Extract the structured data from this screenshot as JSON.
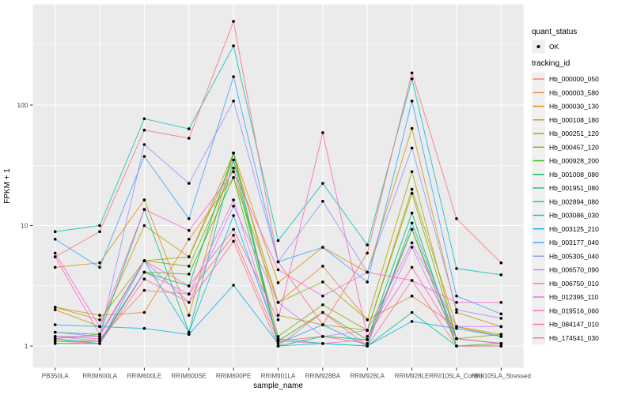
{
  "chart_data": {
    "type": "line",
    "title": "",
    "xlabel": "sample_name",
    "ylabel": "FPKM + 1",
    "y_scale": "log10",
    "y_ticks": [
      1,
      10,
      100
    ],
    "ylim": [
      0.9,
      700
    ],
    "grid": true,
    "legend_position": "right",
    "panel_bg": "#EBEBEB",
    "grid_color": "#FFFFFF",
    "point_color": "#000000",
    "tick_label_color": "#4D4D4D",
    "axis_title_color": "#000000",
    "legend_key_bg": "#F0F0F0",
    "categories": [
      "PB350LA",
      "RRIM600LA",
      "RRIM600LE",
      "RRIM600SE",
      "RRIM600PE",
      "RRIM901LA",
      "RRIM928BA",
      "RRIM928LA",
      "RRIM928LE",
      "RRII105LA_Control",
      "RRII105LA_Stressed"
    ],
    "legend": {
      "quant_status_title": "quant_status",
      "quant_status_items": [
        {
          "label": "OK",
          "symbol": "point"
        }
      ],
      "tracking_id_title": "tracking_id"
    },
    "series": [
      {
        "tracking_id": "Hb_000000_050",
        "color": "#F8766D",
        "values": [
          1.2,
          1.15,
          2.9,
          2.7,
          8.3,
          1.1,
          1.2,
          1.05,
          9.3,
          1.15,
          1.05
        ]
      },
      {
        "tracking_id": "Hb_000003_580",
        "color": "#EA8331",
        "values": [
          2.1,
          1.8,
          1.9,
          7.7,
          25,
          2.3,
          4.6,
          1.65,
          2.6,
          1.45,
          1.25
        ]
      },
      {
        "tracking_id": "Hb_000030_130",
        "color": "#D89000",
        "values": [
          4.5,
          4.9,
          16.3,
          1.8,
          40,
          3.35,
          6.6,
          4.1,
          64,
          1.9,
          1.45
        ]
      },
      {
        "tracking_id": "Hb_000108_180",
        "color": "#C09B00",
        "values": [
          2.0,
          1.45,
          10,
          5.5,
          40,
          1.8,
          1.5,
          1.35,
          20,
          1.45,
          1.2
        ]
      },
      {
        "tracking_id": "Hb_000251_120",
        "color": "#A3A500",
        "values": [
          2.1,
          1.65,
          5.1,
          5.5,
          35,
          2.3,
          3.4,
          1.65,
          28,
          1.15,
          1.05
        ]
      },
      {
        "tracking_id": "Hb_000457_120",
        "color": "#7CAE00",
        "values": [
          1.15,
          1.25,
          5.1,
          4.6,
          30,
          1.2,
          2.2,
          1.35,
          18.5,
          1.15,
          1.25
        ]
      },
      {
        "tracking_id": "Hb_000928_200",
        "color": "#39B600",
        "values": [
          1.1,
          1.1,
          4.1,
          3.95,
          25,
          1.1,
          1.9,
          1.13,
          9.3,
          1.0,
          1.05
        ]
      },
      {
        "tracking_id": "Hb_001008_080",
        "color": "#00BB4E",
        "values": [
          1.05,
          1.05,
          4.1,
          3.15,
          40,
          1.0,
          1.2,
          1.13,
          12.7,
          1.0,
          1.0
        ]
      },
      {
        "tracking_id": "Hb_001951_080",
        "color": "#00C087",
        "values": [
          1.3,
          1.25,
          13.6,
          1.3,
          35,
          1.0,
          1.05,
          1.0,
          1.9,
          1.0,
          1.0
        ]
      },
      {
        "tracking_id": "Hb_002894_080",
        "color": "#00C0B8",
        "values": [
          8.9,
          10,
          77,
          63.5,
          310,
          7.5,
          22.4,
          6.9,
          165,
          4.4,
          3.9
        ]
      },
      {
        "tracking_id": "Hb_003086_030",
        "color": "#00BCD8",
        "values": [
          1.15,
          1.05,
          5.1,
          1.3,
          12.1,
          1.15,
          1.05,
          1.0,
          10.5,
          1.15,
          1.05
        ]
      },
      {
        "tracking_id": "Hb_003125_210",
        "color": "#00B0F6",
        "values": [
          1.5,
          1.45,
          1.4,
          1.25,
          3.2,
          1.05,
          1.5,
          1.0,
          1.6,
          1.4,
          1.2
        ]
      },
      {
        "tracking_id": "Hb_003177_040",
        "color": "#35A2FF",
        "values": [
          7.7,
          4.5,
          37.5,
          11.4,
          172,
          5.0,
          6.6,
          3.4,
          108,
          2.6,
          1.85
        ]
      },
      {
        "tracking_id": "Hb_005305_040",
        "color": "#9590FF",
        "values": [
          1.3,
          1.2,
          47,
          22.4,
          108,
          5.0,
          15.9,
          4.1,
          44,
          2.0,
          1.7
        ]
      },
      {
        "tracking_id": "Hb_006570_090",
        "color": "#C77CFF",
        "values": [
          1.2,
          1.2,
          5.1,
          2.3,
          14.5,
          2.3,
          1.2,
          1.35,
          7.2,
          1.45,
          1.45
        ]
      },
      {
        "tracking_id": "Hb_006750_010",
        "color": "#E76BF3",
        "values": [
          1.2,
          1.1,
          4.1,
          2.7,
          16.3,
          1.1,
          1.05,
          1.13,
          6.6,
          1.15,
          1.05
        ]
      },
      {
        "tracking_id": "Hb_012395_110",
        "color": "#FA62DB",
        "values": [
          5.9,
          1.45,
          13.6,
          9.1,
          28,
          4.3,
          2.6,
          4.1,
          3.5,
          2.3,
          2.3
        ]
      },
      {
        "tracking_id": "Hb_019516_060",
        "color": "#FF62BC",
        "values": [
          5.5,
          1.25,
          5.1,
          3.15,
          9.3,
          1.65,
          59,
          1.2,
          4.5,
          1.15,
          1.05
        ]
      },
      {
        "tracking_id": "Hb_084147_010",
        "color": "#FF6A98",
        "values": [
          1.1,
          1.05,
          3.6,
          2.3,
          7.4,
          1.0,
          1.9,
          1.0,
          3.5,
          1.0,
          1.0
        ]
      },
      {
        "tracking_id": "Hb_174541_030",
        "color": "#FC6E75",
        "values": [
          5.5,
          8.9,
          62,
          53,
          495,
          5.0,
          1.5,
          5.9,
          185,
          11.4,
          4.9
        ]
      }
    ]
  }
}
